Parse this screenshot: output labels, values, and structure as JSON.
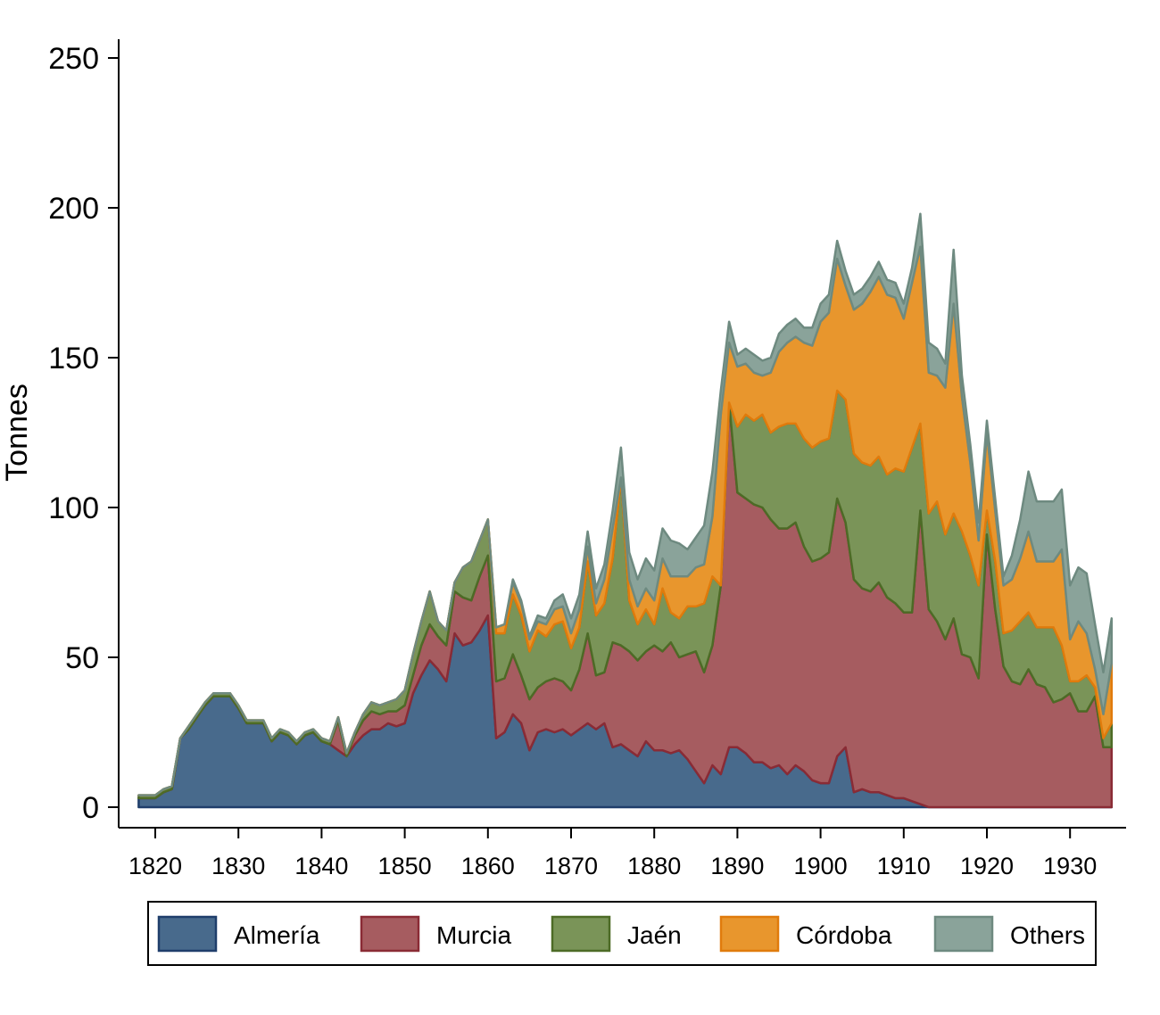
{
  "chart_data": {
    "type": "area",
    "stacked": true,
    "title": "",
    "xlabel": "",
    "ylabel": "Tonnes",
    "xlim": [
      1817,
      1937
    ],
    "ylim": [
      0,
      250
    ],
    "x_ticks": [
      1820,
      1830,
      1840,
      1850,
      1860,
      1870,
      1880,
      1890,
      1900,
      1910,
      1920,
      1930
    ],
    "y_ticks": [
      0,
      50,
      100,
      150,
      200,
      250
    ],
    "grid": false,
    "legend_position": "bottom",
    "x": [
      1818,
      1819,
      1820,
      1821,
      1822,
      1823,
      1824,
      1825,
      1826,
      1827,
      1828,
      1829,
      1830,
      1831,
      1832,
      1833,
      1834,
      1835,
      1836,
      1837,
      1838,
      1839,
      1840,
      1841,
      1842,
      1843,
      1844,
      1845,
      1846,
      1847,
      1848,
      1849,
      1850,
      1851,
      1852,
      1853,
      1854,
      1855,
      1856,
      1857,
      1858,
      1859,
      1860,
      1861,
      1862,
      1863,
      1864,
      1865,
      1866,
      1867,
      1868,
      1869,
      1870,
      1871,
      1872,
      1873,
      1874,
      1875,
      1876,
      1877,
      1878,
      1879,
      1880,
      1881,
      1882,
      1883,
      1884,
      1885,
      1886,
      1887,
      1888,
      1889,
      1890,
      1891,
      1892,
      1893,
      1894,
      1895,
      1896,
      1897,
      1898,
      1899,
      1900,
      1901,
      1902,
      1903,
      1904,
      1905,
      1906,
      1907,
      1908,
      1909,
      1910,
      1911,
      1912,
      1913,
      1914,
      1915,
      1916,
      1917,
      1918,
      1919,
      1920,
      1921,
      1922,
      1923,
      1924,
      1925,
      1926,
      1927,
      1928,
      1929,
      1930,
      1931,
      1932,
      1933,
      1934,
      1935
    ],
    "series": [
      {
        "name": "Almería",
        "color": "#486a8c",
        "line_color": "#1f3e6b",
        "values": [
          3,
          3,
          3,
          5,
          6,
          23,
          26,
          30,
          34,
          37,
          37,
          37,
          33,
          28,
          28,
          28,
          22,
          25,
          24,
          21,
          24,
          25,
          22,
          21,
          19,
          17,
          21,
          24,
          26,
          26,
          28,
          27,
          28,
          38,
          44,
          49,
          46,
          42,
          58,
          54,
          55,
          59,
          64,
          23,
          25,
          31,
          28,
          19,
          25,
          26,
          25,
          26,
          24,
          26,
          28,
          26,
          28,
          20,
          21,
          19,
          17,
          22,
          19,
          19,
          18,
          19,
          16,
          12,
          8,
          14,
          11,
          20,
          20,
          18,
          15,
          15,
          13,
          14,
          11,
          14,
          12,
          9,
          8,
          8,
          17,
          20,
          5,
          6,
          5,
          5,
          4,
          3,
          3,
          2,
          1,
          0,
          0,
          0,
          0,
          0,
          0,
          0,
          0,
          0,
          0,
          0,
          0,
          0,
          0,
          0,
          0,
          0,
          0,
          0,
          0,
          0,
          0,
          0
        ]
      },
      {
        "name": "Murcia",
        "color": "#a65c60",
        "line_color": "#8a2b35",
        "values": [
          0,
          0,
          0,
          0,
          0,
          0,
          0,
          0,
          0,
          0,
          0,
          0,
          0,
          0,
          0,
          0,
          0,
          0,
          0,
          0,
          0,
          0,
          0,
          0,
          10,
          0,
          3,
          5,
          6,
          5,
          4,
          5,
          6,
          6,
          10,
          12,
          11,
          12,
          14,
          16,
          14,
          18,
          20,
          19,
          18,
          20,
          16,
          17,
          15,
          16,
          18,
          16,
          15,
          20,
          30,
          18,
          17,
          35,
          33,
          33,
          32,
          30,
          35,
          33,
          37,
          31,
          35,
          40,
          37,
          40,
          63,
          115,
          85,
          85,
          86,
          85,
          83,
          79,
          82,
          81,
          75,
          73,
          75,
          77,
          86,
          75,
          71,
          67,
          67,
          70,
          66,
          65,
          62,
          63,
          98,
          66,
          62,
          56,
          63,
          51,
          50,
          43,
          91,
          66,
          47,
          42,
          41,
          46,
          41,
          40,
          35,
          36,
          38,
          32,
          32,
          37,
          20,
          20
        ]
      },
      {
        "name": "Jaén",
        "color": "#7a9458",
        "line_color": "#4d6b26",
        "values": [
          1,
          1,
          1,
          1,
          1,
          0,
          1,
          1,
          1,
          1,
          1,
          1,
          1,
          1,
          1,
          1,
          1,
          1,
          1,
          1,
          1,
          1,
          1,
          1,
          1,
          1,
          1,
          2,
          3,
          3,
          3,
          4,
          5,
          7,
          8,
          11,
          5,
          5,
          3,
          10,
          13,
          12,
          12,
          16,
          15,
          20,
          20,
          16,
          19,
          15,
          18,
          20,
          14,
          14,
          24,
          20,
          23,
          28,
          56,
          17,
          12,
          14,
          7,
          21,
          10,
          13,
          16,
          15,
          23,
          23,
          0,
          0,
          22,
          28,
          28,
          31,
          29,
          34,
          35,
          33,
          36,
          38,
          39,
          38,
          36,
          41,
          42,
          42,
          42,
          42,
          41,
          45,
          47,
          55,
          29,
          32,
          40,
          35,
          35,
          41,
          34,
          31,
          8,
          16,
          11,
          17,
          21,
          19,
          19,
          20,
          25,
          18,
          4,
          10,
          12,
          3,
          3,
          8
        ]
      },
      {
        "name": "Córdoba",
        "color": "#e8962d",
        "line_color": "#e07b0c",
        "values": [
          0,
          0,
          0,
          0,
          0,
          0,
          0,
          0,
          0,
          0,
          0,
          0,
          0,
          0,
          0,
          0,
          0,
          0,
          0,
          0,
          0,
          0,
          0,
          0,
          0,
          0,
          0,
          0,
          0,
          0,
          0,
          0,
          0,
          0,
          0,
          0,
          0,
          0,
          0,
          0,
          0,
          0,
          0,
          2,
          3,
          4,
          4,
          4,
          3,
          4,
          5,
          5,
          5,
          6,
          5,
          4,
          8,
          10,
          0,
          7,
          6,
          7,
          8,
          10,
          12,
          14,
          10,
          13,
          13,
          20,
          57,
          20,
          20,
          17,
          16,
          13,
          20,
          25,
          27,
          29,
          32,
          34,
          40,
          42,
          44,
          38,
          48,
          53,
          58,
          60,
          60,
          57,
          51,
          55,
          59,
          47,
          42,
          49,
          70,
          45,
          31,
          15,
          26,
          17,
          16,
          17,
          21,
          27,
          22,
          22,
          22,
          32,
          14,
          20,
          14,
          6,
          8,
          20
        ]
      },
      {
        "name": "Others",
        "color": "#8aa39a",
        "line_color": "#6e8a80",
        "values": [
          0,
          0,
          0,
          0,
          0,
          0,
          0,
          0,
          0,
          0,
          0,
          0,
          0,
          0,
          0,
          0,
          0,
          0,
          0,
          0,
          0,
          0,
          0,
          0,
          0,
          0,
          0,
          0,
          0,
          0,
          0,
          0,
          0,
          0,
          0,
          0,
          0,
          0,
          0,
          0,
          0,
          0,
          0,
          0,
          0,
          1,
          1,
          1,
          2,
          2,
          3,
          4,
          5,
          5,
          5,
          5,
          5,
          6,
          10,
          9,
          9,
          10,
          10,
          10,
          12,
          11,
          9,
          10,
          13,
          15,
          8,
          7,
          4,
          5,
          6,
          5,
          5,
          6,
          6,
          6,
          5,
          6,
          6,
          6,
          6,
          5,
          5,
          5,
          5,
          5,
          5,
          5,
          5,
          5,
          11,
          10,
          9,
          8,
          18,
          7,
          6,
          6,
          4,
          4,
          3,
          8,
          13,
          20,
          20,
          20,
          20,
          20,
          18,
          18,
          20,
          15,
          14,
          15
        ]
      }
    ]
  },
  "legend": {
    "items": [
      {
        "label": "Almería",
        "color": "#486a8c",
        "border": "#1f3e6b"
      },
      {
        "label": "Murcia",
        "color": "#a65c60",
        "border": "#8a2b35"
      },
      {
        "label": "Jaén",
        "color": "#7a9458",
        "border": "#4d6b26"
      },
      {
        "label": "Córdoba",
        "color": "#e8962d",
        "border": "#e07b0c"
      },
      {
        "label": "Others",
        "color": "#8aa39a",
        "border": "#6e8a80"
      }
    ]
  }
}
